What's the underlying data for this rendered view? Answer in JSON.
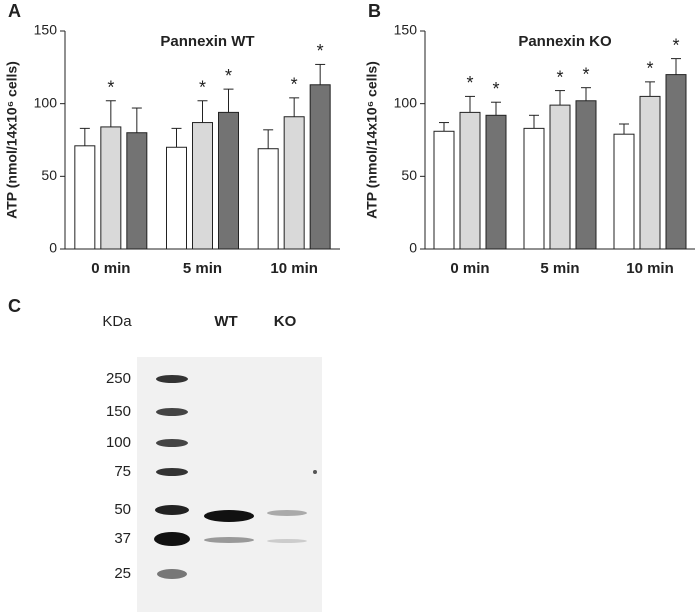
{
  "chart_data": [
    {
      "type": "bar",
      "panel_label": "A",
      "title": "Pannexin WT",
      "y_label": "ATP (nmol/14x10⁶ cells)",
      "categories": [
        "0 min",
        "5 min",
        "10 min"
      ],
      "series": [
        {
          "color": "#ffffff",
          "values": [
            71,
            70,
            69
          ],
          "errors": [
            12,
            13,
            13
          ],
          "annotations": [
            null,
            null,
            null
          ]
        },
        {
          "color": "#d9d9d9",
          "values": [
            84,
            87,
            91
          ],
          "errors": [
            18,
            15,
            13
          ],
          "annotations": [
            "*",
            "*",
            "*"
          ]
        },
        {
          "color": "#737373",
          "values": [
            80,
            94,
            113
          ],
          "errors": [
            17,
            16,
            14
          ],
          "annotations": [
            null,
            "*",
            "*"
          ]
        }
      ],
      "ylim": [
        0,
        150
      ],
      "yticks": [
        0,
        50,
        100,
        150
      ]
    },
    {
      "type": "bar",
      "panel_label": "B",
      "title": "Pannexin KO",
      "y_label": "ATP (nmol/14x10⁶ cells)",
      "categories": [
        "0 min",
        "5 min",
        "10 min"
      ],
      "series": [
        {
          "color": "#ffffff",
          "values": [
            81,
            83,
            79
          ],
          "errors": [
            6,
            9,
            7
          ],
          "annotations": [
            null,
            null,
            null
          ]
        },
        {
          "color": "#d9d9d9",
          "values": [
            94,
            99,
            105
          ],
          "errors": [
            11,
            10,
            10
          ],
          "annotations": [
            "*",
            "*",
            "*"
          ]
        },
        {
          "color": "#737373",
          "values": [
            92,
            102,
            120
          ],
          "errors": [
            9,
            9,
            11
          ],
          "annotations": [
            "*",
            "*",
            "*"
          ]
        }
      ],
      "ylim": [
        0,
        150
      ],
      "yticks": [
        0,
        50,
        100,
        150
      ]
    }
  ],
  "blot": {
    "panel_label": "C",
    "unit_label": "KDa",
    "lanes": [
      "WT",
      "KO"
    ],
    "markers": [
      "250",
      "150",
      "100",
      "75",
      "50",
      "37",
      "25"
    ]
  }
}
